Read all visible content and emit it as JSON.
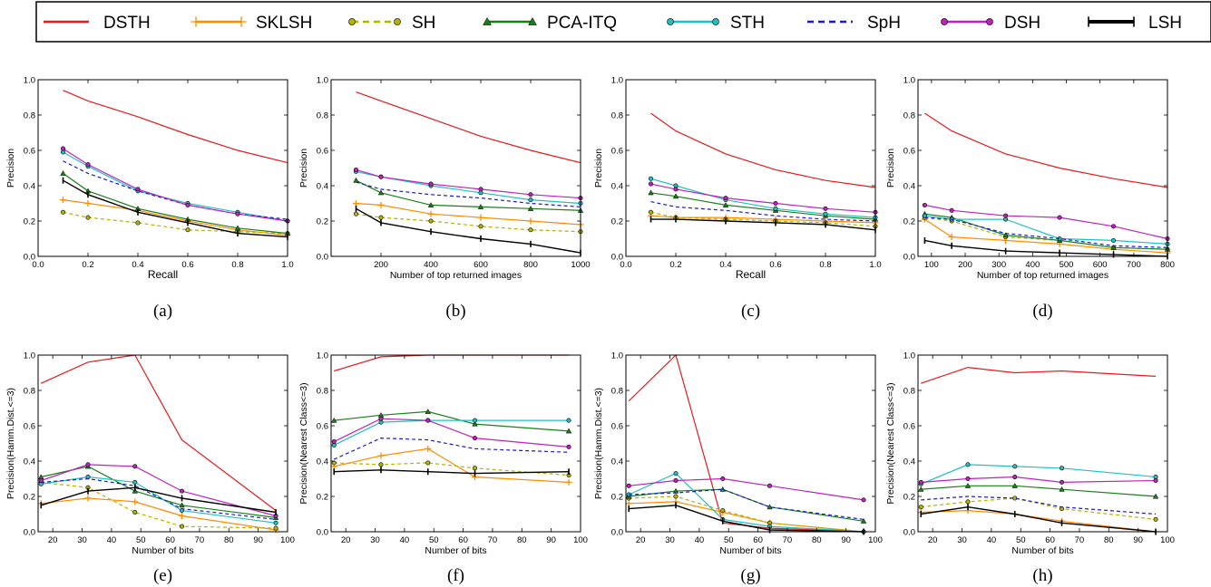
{
  "legend": [
    {
      "name": "DSTH",
      "color": "#e41a1c",
      "marker": "none",
      "dash": "solid"
    },
    {
      "name": "SKLSH",
      "color": "#ff8c00",
      "marker": "plus",
      "dash": "solid"
    },
    {
      "name": "SH",
      "color": "#b3b300",
      "marker": "circle",
      "dash": "dashed"
    },
    {
      "name": "PCA-ITQ",
      "color": "#1a7f1a",
      "marker": "triangle",
      "dash": "solid"
    },
    {
      "name": "STH",
      "color": "#20c0c0",
      "marker": "circle",
      "dash": "solid"
    },
    {
      "name": "SpH",
      "color": "#1a1acc",
      "marker": "none",
      "dash": "dashed"
    },
    {
      "name": "DSH",
      "color": "#c020c0",
      "marker": "circle",
      "dash": "solid"
    },
    {
      "name": "LSH",
      "color": "#000000",
      "marker": "bar",
      "dash": "solid"
    }
  ],
  "chart_data": [
    {
      "type": "line",
      "caption": "(a)",
      "xlabel": "Recall",
      "ylabel": "Precision",
      "xlim": [
        0.0,
        1.0
      ],
      "ylim": [
        0.0,
        1.0
      ],
      "xticks": [
        "0.0",
        "0.2",
        "0.4",
        "0.6",
        "0.8",
        "1.0"
      ],
      "xtick_values": [
        0,
        0.2,
        0.4,
        0.6,
        0.8,
        1.0
      ],
      "yticks": [
        "0.0",
        "0.2",
        "0.4",
        "0.6",
        "0.8",
        "1.0"
      ],
      "ytick_values": [
        0,
        0.2,
        0.4,
        0.6,
        0.8,
        1.0
      ],
      "x": [
        0.1,
        0.2,
        0.4,
        0.6,
        0.8,
        1.0
      ],
      "series": [
        {
          "name": "DSTH",
          "values": [
            0.94,
            0.88,
            0.79,
            0.69,
            0.6,
            0.53
          ]
        },
        {
          "name": "SKLSH",
          "values": [
            0.32,
            0.3,
            0.26,
            0.2,
            0.15,
            0.12
          ]
        },
        {
          "name": "SH",
          "values": [
            0.25,
            0.22,
            0.19,
            0.15,
            0.14,
            0.13
          ]
        },
        {
          "name": "PCA-ITQ",
          "values": [
            0.47,
            0.37,
            0.27,
            0.21,
            0.16,
            0.13
          ]
        },
        {
          "name": "STH",
          "values": [
            0.59,
            0.51,
            0.37,
            0.3,
            0.25,
            0.2
          ]
        },
        {
          "name": "SpH",
          "values": [
            0.54,
            0.47,
            0.37,
            0.29,
            0.24,
            0.21
          ]
        },
        {
          "name": "DSH",
          "values": [
            0.61,
            0.52,
            0.38,
            0.29,
            0.24,
            0.2
          ]
        },
        {
          "name": "LSH",
          "values": [
            0.43,
            0.35,
            0.25,
            0.19,
            0.13,
            0.11
          ]
        }
      ]
    },
    {
      "type": "line",
      "caption": "(b)",
      "xlabel": "Number of top returned images",
      "ylabel": "Precision",
      "xlim": [
        0,
        1000
      ],
      "ylim": [
        0.0,
        1.0
      ],
      "xticks": [
        "200",
        "400",
        "600",
        "800",
        "1000"
      ],
      "xtick_values": [
        200,
        400,
        600,
        800,
        1000
      ],
      "yticks": [
        "0.0",
        "0.2",
        "0.4",
        "0.6",
        "0.8",
        "1.0"
      ],
      "ytick_values": [
        0,
        0.2,
        0.4,
        0.6,
        0.8,
        1.0
      ],
      "x": [
        100,
        200,
        400,
        600,
        800,
        1000
      ],
      "series": [
        {
          "name": "DSTH",
          "values": [
            0.93,
            0.88,
            0.78,
            0.68,
            0.6,
            0.53
          ]
        },
        {
          "name": "SKLSH",
          "values": [
            0.3,
            0.29,
            0.24,
            0.22,
            0.2,
            0.18
          ]
        },
        {
          "name": "SH",
          "values": [
            0.24,
            0.22,
            0.2,
            0.17,
            0.15,
            0.14
          ]
        },
        {
          "name": "PCA-ITQ",
          "values": [
            0.43,
            0.36,
            0.29,
            0.28,
            0.27,
            0.26
          ]
        },
        {
          "name": "STH",
          "values": [
            0.48,
            0.45,
            0.4,
            0.36,
            0.32,
            0.3
          ]
        },
        {
          "name": "SpH",
          "values": [
            0.42,
            0.38,
            0.35,
            0.33,
            0.3,
            0.28
          ]
        },
        {
          "name": "DSH",
          "values": [
            0.49,
            0.45,
            0.41,
            0.38,
            0.35,
            0.33
          ]
        },
        {
          "name": "LSH",
          "values": [
            0.27,
            0.19,
            0.14,
            0.1,
            0.07,
            0.02
          ]
        }
      ]
    },
    {
      "type": "line",
      "caption": "(c)",
      "xlabel": "Recall",
      "ylabel": "Precision",
      "xlim": [
        0.0,
        1.0
      ],
      "ylim": [
        0.0,
        1.0
      ],
      "xticks": [
        "0.0",
        "0.2",
        "0.4",
        "0.6",
        "0.8",
        "1.0"
      ],
      "xtick_values": [
        0,
        0.2,
        0.4,
        0.6,
        0.8,
        1.0
      ],
      "yticks": [
        "0.0",
        "0.2",
        "0.4",
        "0.6",
        "0.8",
        "1.0"
      ],
      "ytick_values": [
        0,
        0.2,
        0.4,
        0.6,
        0.8,
        1.0
      ],
      "x": [
        0.1,
        0.2,
        0.4,
        0.6,
        0.8,
        1.0
      ],
      "series": [
        {
          "name": "DSTH",
          "values": [
            0.81,
            0.71,
            0.58,
            0.49,
            0.43,
            0.39
          ]
        },
        {
          "name": "SKLSH",
          "values": [
            0.23,
            0.22,
            0.22,
            0.21,
            0.2,
            0.19
          ]
        },
        {
          "name": "SH",
          "values": [
            0.25,
            0.22,
            0.21,
            0.2,
            0.19,
            0.17
          ]
        },
        {
          "name": "PCA-ITQ",
          "values": [
            0.36,
            0.34,
            0.29,
            0.26,
            0.23,
            0.21
          ]
        },
        {
          "name": "STH",
          "values": [
            0.44,
            0.4,
            0.32,
            0.27,
            0.24,
            0.22
          ]
        },
        {
          "name": "SpH",
          "values": [
            0.31,
            0.28,
            0.26,
            0.23,
            0.21,
            0.2
          ]
        },
        {
          "name": "DSH",
          "values": [
            0.41,
            0.38,
            0.33,
            0.3,
            0.27,
            0.25
          ]
        },
        {
          "name": "LSH",
          "values": [
            0.21,
            0.21,
            0.2,
            0.19,
            0.18,
            0.15
          ]
        }
      ]
    },
    {
      "type": "line",
      "caption": "(d)",
      "xlabel": "Number of top returned images",
      "ylabel": "Precision",
      "xlim": [
        60,
        800
      ],
      "ylim": [
        0.0,
        1.0
      ],
      "xticks": [
        "100",
        "200",
        "300",
        "400",
        "500",
        "600",
        "700",
        "800"
      ],
      "xtick_values": [
        100,
        200,
        300,
        400,
        500,
        600,
        700,
        800
      ],
      "yticks": [
        "0.0",
        "0.2",
        "0.4",
        "0.6",
        "0.8",
        "1.0"
      ],
      "ytick_values": [
        0,
        0.2,
        0.4,
        0.6,
        0.8,
        1.0
      ],
      "x": [
        80,
        160,
        320,
        480,
        640,
        800
      ],
      "series": [
        {
          "name": "DSTH",
          "values": [
            0.81,
            0.71,
            0.58,
            0.5,
            0.44,
            0.39
          ]
        },
        {
          "name": "SKLSH",
          "values": [
            0.21,
            0.11,
            0.09,
            0.07,
            0.04,
            0.02
          ]
        },
        {
          "name": "SH",
          "values": [
            0.22,
            0.2,
            0.11,
            0.09,
            0.05,
            0.04
          ]
        },
        {
          "name": "PCA-ITQ",
          "values": [
            0.24,
            0.22,
            0.12,
            0.09,
            0.05,
            0.04
          ]
        },
        {
          "name": "STH",
          "values": [
            0.23,
            0.21,
            0.21,
            0.1,
            0.09,
            0.07
          ]
        },
        {
          "name": "SpH",
          "values": [
            0.22,
            0.21,
            0.13,
            0.1,
            0.06,
            0.05
          ]
        },
        {
          "name": "DSH",
          "values": [
            0.29,
            0.26,
            0.23,
            0.22,
            0.17,
            0.1
          ]
        },
        {
          "name": "LSH",
          "values": [
            0.09,
            0.06,
            0.03,
            0.02,
            0.01,
            0.0
          ]
        }
      ]
    },
    {
      "type": "line",
      "caption": "(e)",
      "xlabel": "Number of bits",
      "ylabel": "Precision(Hamm.Dist.<=3)",
      "xlim": [
        15,
        100
      ],
      "ylim": [
        0.0,
        1.0
      ],
      "xticks": [
        "20",
        "30",
        "40",
        "50",
        "60",
        "70",
        "80",
        "90",
        "100"
      ],
      "xtick_values": [
        20,
        30,
        40,
        50,
        60,
        70,
        80,
        90,
        100
      ],
      "yticks": [
        "0.0",
        "0.2",
        "0.4",
        "0.6",
        "0.8",
        "1.0"
      ],
      "ytick_values": [
        0,
        0.2,
        0.4,
        0.6,
        0.8,
        1.0
      ],
      "x": [
        16,
        32,
        48,
        64,
        96
      ],
      "series": [
        {
          "name": "DSTH",
          "values": [
            0.84,
            0.96,
            1.0,
            0.52,
            0.12
          ]
        },
        {
          "name": "SKLSH",
          "values": [
            0.16,
            0.19,
            0.17,
            0.09,
            0.01
          ]
        },
        {
          "name": "SH",
          "values": [
            0.28,
            0.25,
            0.11,
            0.03,
            0.02
          ]
        },
        {
          "name": "PCA-ITQ",
          "values": [
            0.31,
            0.37,
            0.23,
            0.15,
            0.08
          ]
        },
        {
          "name": "STH",
          "values": [
            0.27,
            0.31,
            0.28,
            0.12,
            0.05
          ]
        },
        {
          "name": "SpH",
          "values": [
            0.28,
            0.3,
            0.26,
            0.13,
            0.07
          ]
        },
        {
          "name": "DSH",
          "values": [
            0.29,
            0.38,
            0.37,
            0.23,
            0.09
          ]
        },
        {
          "name": "LSH",
          "values": [
            0.15,
            0.23,
            0.25,
            0.19,
            0.11
          ]
        }
      ]
    },
    {
      "type": "line",
      "caption": "(f)",
      "xlabel": "Number of bits",
      "ylabel": "Precision(Nearest Class<=3)",
      "xlim": [
        15,
        100
      ],
      "ylim": [
        0.0,
        1.0
      ],
      "xticks": [
        "20",
        "30",
        "40",
        "50",
        "60",
        "70",
        "80",
        "90",
        "100"
      ],
      "xtick_values": [
        20,
        30,
        40,
        50,
        60,
        70,
        80,
        90,
        100
      ],
      "yticks": [
        "0.0",
        "0.2",
        "0.4",
        "0.6",
        "0.8",
        "1.0"
      ],
      "ytick_values": [
        0,
        0.2,
        0.4,
        0.6,
        0.8,
        1.0
      ],
      "x": [
        16,
        32,
        48,
        64,
        96
      ],
      "series": [
        {
          "name": "DSTH",
          "values": [
            0.91,
            0.99,
            1.0,
            1.0,
            1.0
          ]
        },
        {
          "name": "SKLSH",
          "values": [
            0.37,
            0.43,
            0.47,
            0.31,
            0.28
          ]
        },
        {
          "name": "SH",
          "values": [
            0.39,
            0.38,
            0.39,
            0.36,
            0.32
          ]
        },
        {
          "name": "PCA-ITQ",
          "values": [
            0.63,
            0.66,
            0.68,
            0.61,
            0.57
          ]
        },
        {
          "name": "STH",
          "values": [
            0.49,
            0.62,
            0.63,
            0.63,
            0.63
          ]
        },
        {
          "name": "SpH",
          "values": [
            0.41,
            0.53,
            0.52,
            0.47,
            0.45
          ]
        },
        {
          "name": "DSH",
          "values": [
            0.51,
            0.64,
            0.63,
            0.53,
            0.48
          ]
        },
        {
          "name": "LSH",
          "values": [
            0.34,
            0.35,
            0.34,
            0.33,
            0.34
          ]
        }
      ]
    },
    {
      "type": "line",
      "caption": "(g)",
      "xlabel": "Number of bits",
      "ylabel": "Precision(Hamm.Dist.<=3)",
      "xlim": [
        15,
        100
      ],
      "ylim": [
        0.0,
        1.0
      ],
      "xticks": [
        "20",
        "30",
        "40",
        "50",
        "60",
        "70",
        "80",
        "90",
        "100"
      ],
      "xtick_values": [
        20,
        30,
        40,
        50,
        60,
        70,
        80,
        90,
        100
      ],
      "yticks": [
        "0.0",
        "0.2",
        "0.4",
        "0.6",
        "0.8",
        "1.0"
      ],
      "ytick_values": [
        0,
        0.2,
        0.4,
        0.6,
        0.8,
        1.0
      ],
      "x": [
        16,
        32,
        48,
        64,
        96
      ],
      "series": [
        {
          "name": "DSTH",
          "values": [
            0.74,
            1.0,
            0.05,
            0.02,
            0.0
          ]
        },
        {
          "name": "SKLSH",
          "values": [
            0.16,
            0.17,
            0.11,
            0.05,
            0.0
          ]
        },
        {
          "name": "SH",
          "values": [
            0.19,
            0.2,
            0.12,
            0.05,
            0.0
          ]
        },
        {
          "name": "PCA-ITQ",
          "values": [
            0.2,
            0.23,
            0.24,
            0.14,
            0.06
          ]
        },
        {
          "name": "STH",
          "values": [
            0.21,
            0.33,
            0.07,
            0.03,
            0.0
          ]
        },
        {
          "name": "SpH",
          "values": [
            0.21,
            0.22,
            0.24,
            0.14,
            0.07
          ]
        },
        {
          "name": "DSH",
          "values": [
            0.26,
            0.29,
            0.3,
            0.26,
            0.18
          ]
        },
        {
          "name": "LSH",
          "values": [
            0.13,
            0.15,
            0.06,
            0.01,
            0.0
          ]
        }
      ]
    },
    {
      "type": "line",
      "caption": "(h)",
      "xlabel": "Number of bits",
      "ylabel": "Precision(Nearest Class<=3)",
      "xlim": [
        15,
        100
      ],
      "ylim": [
        0.0,
        1.0
      ],
      "xticks": [
        "20",
        "30",
        "40",
        "50",
        "60",
        "70",
        "80",
        "90",
        "100"
      ],
      "xtick_values": [
        20,
        30,
        40,
        50,
        60,
        70,
        80,
        90,
        100
      ],
      "yticks": [
        "0.0",
        "0.2",
        "0.4",
        "0.6",
        "0.8",
        "1.0"
      ],
      "ytick_values": [
        0,
        0.2,
        0.4,
        0.6,
        0.8,
        1.0
      ],
      "x": [
        16,
        32,
        48,
        64,
        96
      ],
      "series": [
        {
          "name": "DSTH",
          "values": [
            0.84,
            0.93,
            0.9,
            0.91,
            0.88
          ]
        },
        {
          "name": "SKLSH",
          "values": [
            0.11,
            0.12,
            0.1,
            0.06,
            0.0
          ]
        },
        {
          "name": "SH",
          "values": [
            0.14,
            0.17,
            0.19,
            0.13,
            0.07
          ]
        },
        {
          "name": "PCA-ITQ",
          "values": [
            0.24,
            0.26,
            0.26,
            0.24,
            0.2
          ]
        },
        {
          "name": "STH",
          "values": [
            0.27,
            0.38,
            0.37,
            0.36,
            0.31
          ]
        },
        {
          "name": "SpH",
          "values": [
            0.18,
            0.2,
            0.19,
            0.14,
            0.1
          ]
        },
        {
          "name": "DSH",
          "values": [
            0.28,
            0.3,
            0.31,
            0.28,
            0.29
          ]
        },
        {
          "name": "LSH",
          "values": [
            0.1,
            0.14,
            0.1,
            0.05,
            0.0
          ]
        }
      ]
    }
  ]
}
